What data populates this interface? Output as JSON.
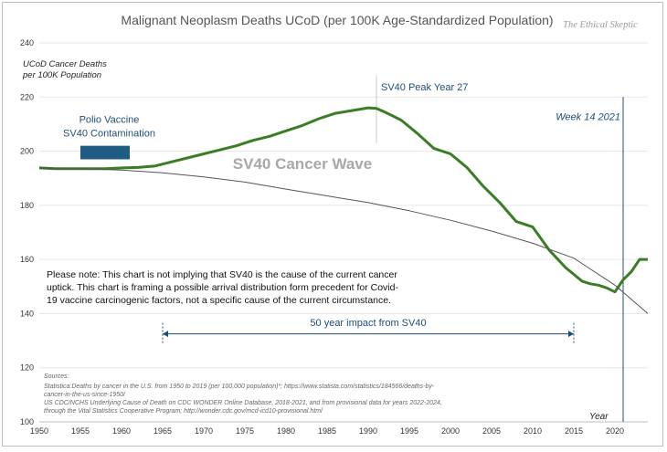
{
  "chart_data": {
    "type": "line",
    "title": "Malignant Neoplasm Deaths UCoD (per 100K Age-Standardized Population)",
    "brand": "The Ethical Skeptic",
    "ylabel_lines": [
      "UCoD Cancer Deaths",
      "per 100K Population"
    ],
    "xlabel": "Year",
    "xlim": [
      1950,
      2024
    ],
    "ylim": [
      100,
      240
    ],
    "xticks": [
      1950,
      1955,
      1960,
      1965,
      1970,
      1975,
      1980,
      1985,
      1990,
      1995,
      2000,
      2005,
      2010,
      2015,
      2020
    ],
    "yticks": [
      100,
      120,
      140,
      160,
      180,
      200,
      220,
      240
    ],
    "grid": "horizontal",
    "series": [
      {
        "color": "#3a7d26",
        "x": [
          1950,
          1952,
          1955,
          1958,
          1960,
          1962,
          1964,
          1966,
          1968,
          1970,
          1972,
          1974,
          1976,
          1978,
          1980,
          1982,
          1984,
          1986,
          1988,
          1990,
          1991,
          1992,
          1994,
          1996,
          1998,
          2000,
          2002,
          2004,
          2006,
          2008,
          2010,
          2012,
          2014,
          2016,
          2017,
          2018,
          2019,
          2020,
          2021,
          2022,
          2023,
          2024
        ],
        "y": [
          193.8,
          193.5,
          193.5,
          193.5,
          193.8,
          194.0,
          194.5,
          196.0,
          197.5,
          199.0,
          200.5,
          202.0,
          204.0,
          205.5,
          207.5,
          209.5,
          212.0,
          214.0,
          215.0,
          216.0,
          215.8,
          214.5,
          211.5,
          206.5,
          201.0,
          199.0,
          194.0,
          187.0,
          181.0,
          174.0,
          172.0,
          163.5,
          157.0,
          152.0,
          151.0,
          150.5,
          149.5,
          148.0,
          152.5,
          155.5,
          160.0,
          160.0
        ]
      },
      {
        "color": "#555555",
        "x": [
          1950,
          1955,
          1960,
          1965,
          1970,
          1975,
          1980,
          1985,
          1990,
          1995,
          2000,
          2005,
          2010,
          2015,
          2020,
          2024
        ],
        "y": [
          193.8,
          193.5,
          193.0,
          192.0,
          190.5,
          188.6,
          186.0,
          183.5,
          181.0,
          178.0,
          174.5,
          170.5,
          166.0,
          160.5,
          150.5,
          140.0
        ]
      }
    ],
    "annotations": {
      "polio_lines": [
        "Polio Vaccine",
        "SV40 Contamination"
      ],
      "polio_box": {
        "x_start": 1955,
        "x_end": 1961,
        "y_low": 197,
        "y_high": 202,
        "color": "#1f5c84"
      },
      "peak_label": "SV40  Peak Year 27",
      "peak_year": 1991,
      "week_label": "Week 14 2021",
      "week_year": 2021,
      "wave_label": "SV40 Cancer Wave",
      "impact_label": "50 year impact from SV40",
      "impact_range": [
        1965,
        2015
      ],
      "note_lines": [
        "Please note: This chart is not implying that SV40 is the cause of the current cancer",
        "uptick. This chart is framing a possible arrival distribution  form precedent for Covid-",
        "19 vaccine carcinogenic factors, not a specific cause of the current circumstance."
      ],
      "sources_heading": "Sources:",
      "source_lines": [
        "Statistica:Deaths by cancer in the U.S. from 1950 to 2019 (per 100,000 population)*; https://www.statista.com/statistics/184566/deaths-by-",
        "cancer-in-the-us-since-1950/",
        "US CDC/NCHS Underlying Cause of Death on CDC WONDER Online Database, 2018-2021, and from provisional data for years 2022-2024,",
        "through the Vital Statistics Cooperative Program; http://wonder.cdc.gov/mcd-icd10-provisional.html"
      ]
    }
  }
}
